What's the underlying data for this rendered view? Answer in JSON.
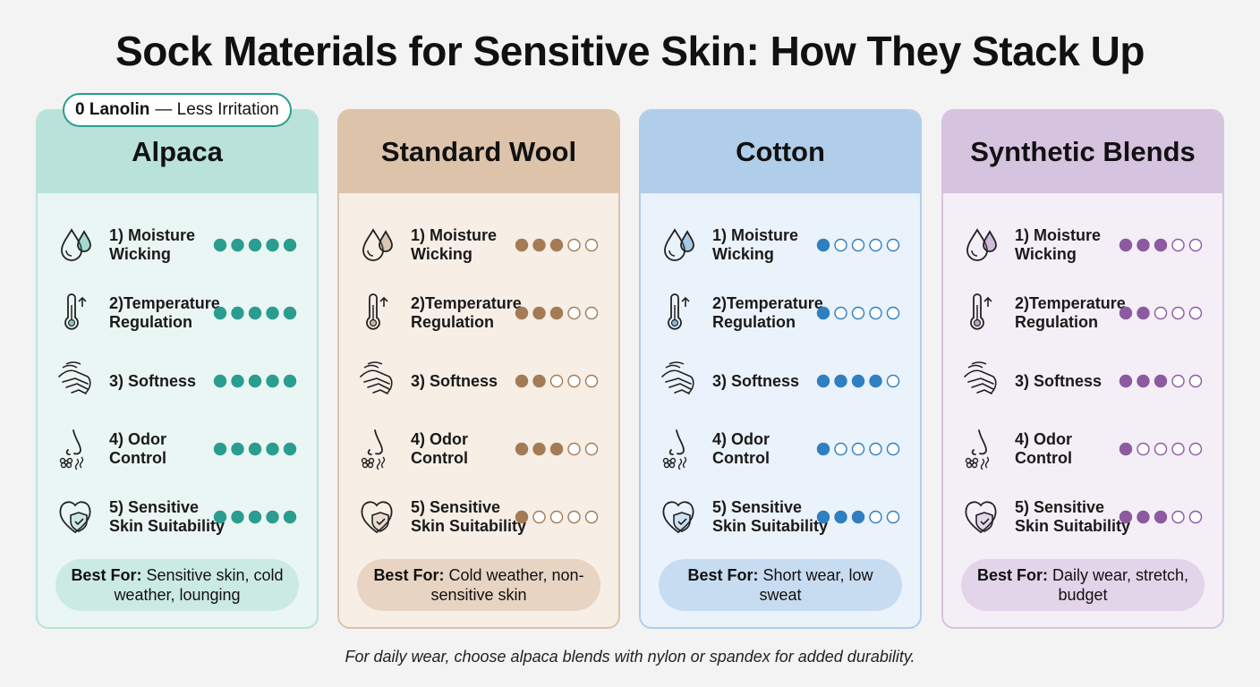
{
  "title": "Sock Materials for Sensitive Skin: How They Stack Up",
  "criteria": [
    "1) Moisture Wicking",
    "2)Temperature Regulation",
    "3) Softness",
    "4) Odor Control",
    "5) Sensitive Skin Suitability"
  ],
  "rating_max": 5,
  "best_for_label": "Best For:",
  "cards": [
    {
      "name": "Alpaca",
      "color": "#2a9d8f",
      "header_color": "#b8e2da",
      "body_color": "#eaf6f3",
      "badge": {
        "strong": "0 Lanolin",
        "text": "— Less Irritation"
      },
      "ratings": [
        5,
        5,
        5,
        5,
        5
      ],
      "best_for": "Sensitive skin, cold weather, lounging"
    },
    {
      "name": "Standard Wool",
      "color": "#a37b55",
      "header_color": "#dcc3aa",
      "body_color": "#f7eee5",
      "ratings": [
        3,
        3,
        2,
        3,
        1
      ],
      "best_for": "Cold weather, non-sensitive skin"
    },
    {
      "name": "Cotton",
      "color": "#2f7fc1",
      "header_color": "#b0cdea",
      "body_color": "#eaf2fb",
      "ratings": [
        1,
        1,
        4,
        1,
        3
      ],
      "best_for": "Short wear, low sweat"
    },
    {
      "name": "Synthetic Blends",
      "color": "#8b5a9f",
      "header_color": "#d6c3e0",
      "body_color": "#f4eef7",
      "ratings": [
        3,
        2,
        3,
        1,
        3
      ],
      "best_for": "Daily wear, stretch, budget"
    }
  ],
  "footnote": "For daily wear, choose alpaca blends with nylon or spandex for added durability."
}
